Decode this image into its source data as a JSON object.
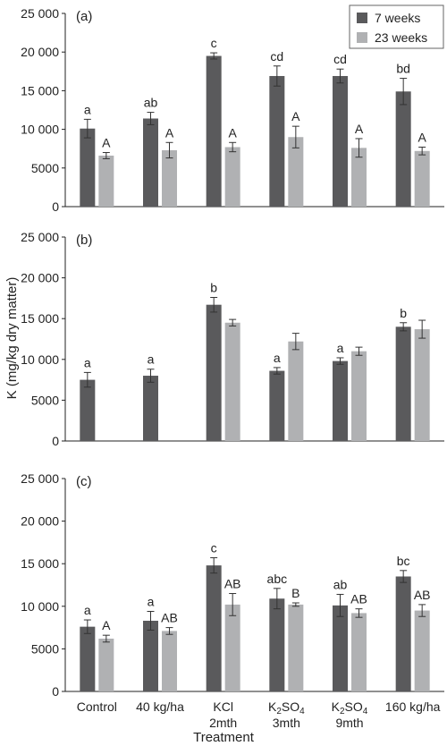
{
  "chart_data": {
    "type": "bar",
    "ylabel": "K (mg/kg dry matter)",
    "xlabel": "Treatment",
    "ylim": [
      0,
      25000
    ],
    "yticks": [
      "0",
      "5000",
      "10 000",
      "15 000",
      "20 000",
      "25 000"
    ],
    "categories": [
      {
        "line1": "Control",
        "line2": ""
      },
      {
        "line1": "40 kg/ha",
        "line2": ""
      },
      {
        "line1": "KCl",
        "line2": "2mth"
      },
      {
        "line1": "K2SO4",
        "line2": "3mth"
      },
      {
        "line1": "K2SO4",
        "line2": "9mth"
      },
      {
        "line1": "160 kg/ha",
        "line2": ""
      }
    ],
    "legend": {
      "position": "top-right",
      "entries": [
        "7 weeks",
        "23 weeks"
      ]
    },
    "colors": {
      "series_7wk": "#5a5a5c",
      "series_23wk": "#b0b1b3",
      "axis": "#222222"
    },
    "panels": [
      {
        "label": "(a)",
        "series": [
          {
            "name": "7 weeks",
            "values": [
              10100,
              11400,
              19500,
              16900,
              16900,
              14900
            ],
            "errors": [
              1200,
              800,
              400,
              1300,
              900,
              1700
            ],
            "letters": [
              "a",
              "ab",
              "c",
              "cd",
              "cd",
              "bd"
            ]
          },
          {
            "name": "23 weeks",
            "values": [
              6600,
              7300,
              7700,
              9000,
              7600,
              7200
            ],
            "errors": [
              400,
              1000,
              600,
              1400,
              1200,
              500
            ],
            "letters": [
              "A",
              "A",
              "A",
              "A",
              "A",
              "A"
            ]
          }
        ]
      },
      {
        "label": "(b)",
        "series": [
          {
            "name": "7 weeks",
            "values": [
              7500,
              8000,
              16700,
              8600,
              9800,
              14000
            ],
            "errors": [
              900,
              800,
              900,
              400,
              400,
              500
            ],
            "letters": [
              "a",
              "a",
              "b",
              "a",
              "a",
              "b"
            ]
          },
          {
            "name": "23 weeks",
            "values": [
              null,
              null,
              14500,
              12200,
              11000,
              13700
            ],
            "errors": [
              null,
              null,
              400,
              1000,
              500,
              1100
            ],
            "letters": [
              "",
              "",
              "",
              "",
              "",
              ""
            ]
          }
        ]
      },
      {
        "label": "(c)",
        "series": [
          {
            "name": "7 weeks",
            "values": [
              7600,
              8300,
              14800,
              10900,
              10100,
              13500
            ],
            "errors": [
              800,
              1100,
              900,
              1200,
              1300,
              700
            ],
            "letters": [
              "a",
              "a",
              "c",
              "abc",
              "ab",
              "bc"
            ]
          },
          {
            "name": "23 weeks",
            "values": [
              6200,
              7100,
              10200,
              10200,
              9200,
              9500
            ],
            "errors": [
              400,
              400,
              1300,
              200,
              500,
              700
            ],
            "letters": [
              "A",
              "AB",
              "AB",
              "B",
              "AB",
              "AB"
            ]
          }
        ]
      }
    ]
  }
}
